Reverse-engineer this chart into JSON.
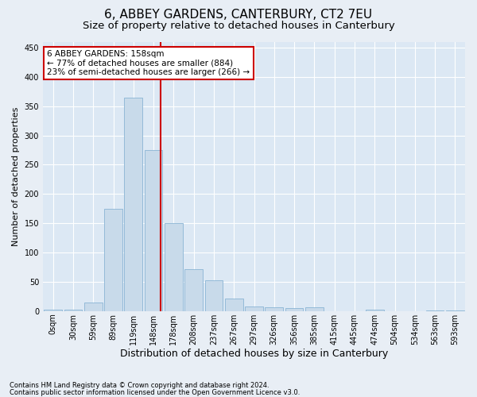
{
  "title": "6, ABBEY GARDENS, CANTERBURY, CT2 7EU",
  "subtitle": "Size of property relative to detached houses in Canterbury",
  "xlabel": "Distribution of detached houses by size in Canterbury",
  "ylabel": "Number of detached properties",
  "footnote1": "Contains HM Land Registry data © Crown copyright and database right 2024.",
  "footnote2": "Contains public sector information licensed under the Open Government Licence v3.0.",
  "bin_labels": [
    "0sqm",
    "30sqm",
    "59sqm",
    "89sqm",
    "119sqm",
    "148sqm",
    "178sqm",
    "208sqm",
    "237sqm",
    "267sqm",
    "297sqm",
    "326sqm",
    "356sqm",
    "385sqm",
    "415sqm",
    "445sqm",
    "474sqm",
    "504sqm",
    "534sqm",
    "563sqm",
    "593sqm"
  ],
  "bar_values": [
    2,
    2,
    15,
    175,
    365,
    275,
    150,
    72,
    53,
    22,
    8,
    6,
    5,
    6,
    0,
    0,
    2,
    0,
    0,
    1,
    1
  ],
  "bar_color": "#c8daea",
  "bar_edge_color": "#8ab4d4",
  "property_line_x": 5.35,
  "property_line_color": "#cc0000",
  "annotation_text": "6 ABBEY GARDENS: 158sqm\n← 77% of detached houses are smaller (884)\n23% of semi-detached houses are larger (266) →",
  "annotation_box_color": "#cc0000",
  "annotation_text_color": "#000000",
  "ylim": [
    0,
    460
  ],
  "bg_color": "#e8eef5",
  "plot_bg_color": "#dce8f4",
  "grid_color": "#ffffff",
  "title_fontsize": 11,
  "subtitle_fontsize": 9.5,
  "tick_fontsize": 7,
  "ylabel_fontsize": 8,
  "xlabel_fontsize": 9,
  "footnote_fontsize": 6,
  "annotation_fontsize": 7.5
}
